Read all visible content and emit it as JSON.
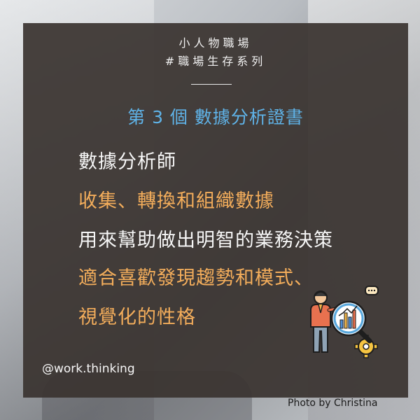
{
  "header": {
    "brand": "小人物職場",
    "series": "#職場生存系列"
  },
  "heading": "第 3 個 數據分析證書",
  "lines": [
    {
      "text": "數據分析師",
      "color": "white"
    },
    {
      "text": "收集、轉換和組織數據",
      "color": "orange"
    },
    {
      "text": "用來幫助做出明智的業務決策",
      "color": "white"
    },
    {
      "text": "適合喜歡發現趨勢和模式、",
      "color": "orange"
    },
    {
      "text": "視覺化的性格",
      "color": "orange"
    }
  ],
  "handle": "@work.thinking",
  "photo_credit": "Photo by Christina",
  "colors": {
    "card": "#3a3430",
    "heading_blue": "#5fb3e8",
    "accent_orange": "#f3ad5b",
    "text_white": "#f7f7f7"
  },
  "icons": {
    "illustration": "analyst-magnifier-chart-gear-icon"
  }
}
